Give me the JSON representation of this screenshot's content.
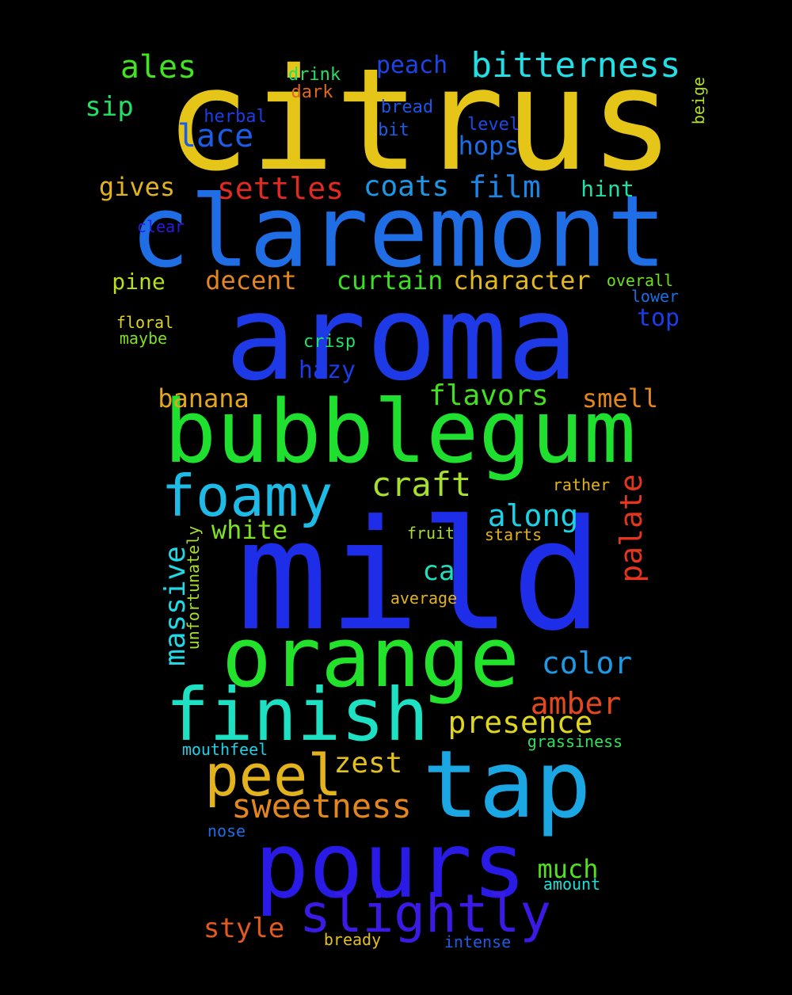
{
  "words": [
    {
      "text": "citrus",
      "color": "#e5c618"
    },
    {
      "text": "claremont",
      "color": "#1f6ee6"
    },
    {
      "text": "aroma",
      "color": "#1e3ae6"
    },
    {
      "text": "bubblegum",
      "color": "#1fe02e"
    },
    {
      "text": "mild",
      "color": "#1e2de8"
    },
    {
      "text": "orange",
      "color": "#22e22b"
    },
    {
      "text": "tap",
      "color": "#1aa7e3"
    },
    {
      "text": "pours",
      "color": "#2a1ae6"
    },
    {
      "text": "finish",
      "color": "#1ee0c2"
    },
    {
      "text": "foamy",
      "color": "#1dbbe6"
    },
    {
      "text": "slightly",
      "color": "#3b1ae5"
    },
    {
      "text": "peel",
      "color": "#e3b31d"
    },
    {
      "text": "bitterness",
      "color": "#22dfe6"
    },
    {
      "text": "craft",
      "color": "#a6e02c"
    },
    {
      "text": "settles",
      "color": "#e12a22"
    },
    {
      "text": "lace",
      "color": "#1d5ce6"
    },
    {
      "text": "ales",
      "color": "#41e41f"
    },
    {
      "text": "coats",
      "color": "#1d98e6"
    },
    {
      "text": "film",
      "color": "#1d85e6"
    },
    {
      "text": "massive",
      "color": "#1fd9e6"
    },
    {
      "text": "palate",
      "color": "#e5361d"
    },
    {
      "text": "sweetness",
      "color": "#e3861d"
    },
    {
      "text": "presence",
      "color": "#e0d61f"
    },
    {
      "text": "amber",
      "color": "#e5481d"
    },
    {
      "text": "along",
      "color": "#1dd1e6"
    },
    {
      "text": "color",
      "color": "#1d99e6"
    },
    {
      "text": "zest",
      "color": "#e3c01d"
    },
    {
      "text": "flavors",
      "color": "#43e01f"
    },
    {
      "text": "character",
      "color": "#e3b81d"
    },
    {
      "text": "curtain",
      "color": "#3ae01f"
    },
    {
      "text": "banana",
      "color": "#e3a51d"
    },
    {
      "text": "decent",
      "color": "#e3861d"
    },
    {
      "text": "sip",
      "color": "#21e065"
    },
    {
      "text": "peach",
      "color": "#1d44e6"
    },
    {
      "text": "hops",
      "color": "#1d6ce6"
    },
    {
      "text": "smell",
      "color": "#e3861d"
    },
    {
      "text": "gives",
      "color": "#e3b31d"
    },
    {
      "text": "pine",
      "color": "#b6e01f"
    },
    {
      "text": "hint",
      "color": "#1de0a7"
    },
    {
      "text": "top",
      "color": "#1d3de6"
    },
    {
      "text": "hazy",
      "color": "#1d3be6"
    },
    {
      "text": "ca",
      "color": "#1de0bd"
    },
    {
      "text": "white",
      "color": "#7ee01f"
    },
    {
      "text": "much",
      "color": "#54e01f"
    },
    {
      "text": "style",
      "color": "#e35a1d"
    },
    {
      "text": "drink",
      "color": "#21e065"
    },
    {
      "text": "dark",
      "color": "#e3661d"
    },
    {
      "text": "herbal",
      "color": "#1d3de6"
    },
    {
      "text": "bread",
      "color": "#1d55e6"
    },
    {
      "text": "bit",
      "color": "#1d5ce6"
    },
    {
      "text": "level",
      "color": "#1d4ae6"
    },
    {
      "text": "beige",
      "color": "#b2e01f"
    },
    {
      "text": "clear",
      "color": "#2a1ae6"
    },
    {
      "text": "overall",
      "color": "#6ee01f"
    },
    {
      "text": "lower",
      "color": "#1d6ee6"
    },
    {
      "text": "floral",
      "color": "#e0d61f"
    },
    {
      "text": "maybe",
      "color": "#7ee01f"
    },
    {
      "text": "crisp",
      "color": "#21e065"
    },
    {
      "text": "rather",
      "color": "#e3b31d"
    },
    {
      "text": "fruit",
      "color": "#a6e02c"
    },
    {
      "text": "starts",
      "color": "#e3b31d"
    },
    {
      "text": "unfortunately",
      "color": "#a6e02c"
    },
    {
      "text": "average",
      "color": "#e3b31d"
    },
    {
      "text": "grassiness",
      "color": "#2ee05a"
    },
    {
      "text": "mouthfeel",
      "color": "#1dd1e6"
    },
    {
      "text": "nose",
      "color": "#1d6ee6"
    },
    {
      "text": "amount",
      "color": "#1de0d6"
    },
    {
      "text": "bready",
      "color": "#e3c01d"
    },
    {
      "text": "intense",
      "color": "#1d5ce6"
    }
  ]
}
